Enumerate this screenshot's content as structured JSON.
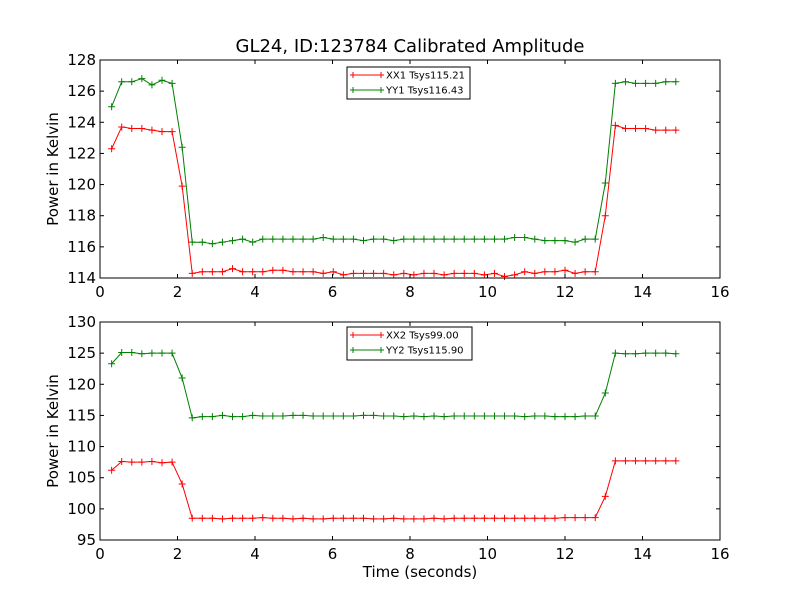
{
  "figure": {
    "title": "GL24, ID:123784 Calibrated Amplitude"
  },
  "chart_data": [
    {
      "type": "line",
      "title": "GL24, ID:123784 Calibrated Amplitude",
      "xlabel": "",
      "ylabel": "Power in Kelvin",
      "xlim": [
        0,
        16
      ],
      "ylim": [
        114,
        128
      ],
      "x_ticks": [
        0,
        2,
        4,
        6,
        8,
        10,
        12,
        14,
        16
      ],
      "y_ticks": [
        114,
        116,
        118,
        120,
        122,
        124,
        126,
        128
      ],
      "grid": false,
      "legend_position": "top-center",
      "x": [
        0.3,
        0.56,
        0.82,
        1.08,
        1.34,
        1.6,
        1.86,
        2.12,
        2.38,
        2.64,
        2.9,
        3.16,
        3.42,
        3.68,
        3.94,
        4.2,
        4.46,
        4.72,
        4.98,
        5.24,
        5.5,
        5.76,
        6.02,
        6.28,
        6.54,
        6.8,
        7.06,
        7.32,
        7.58,
        7.84,
        8.1,
        8.36,
        8.62,
        8.88,
        9.14,
        9.4,
        9.66,
        9.92,
        10.18,
        10.44,
        10.7,
        10.96,
        11.22,
        11.48,
        11.74,
        12.0,
        12.26,
        12.52,
        12.78,
        13.04,
        13.3,
        13.56,
        13.82,
        14.08,
        14.34,
        14.6,
        14.86
      ],
      "series": [
        {
          "name": "XX1 Tsys115.21",
          "color": "#ff0000",
          "values": [
            122.3,
            123.7,
            123.6,
            123.6,
            123.5,
            123.4,
            123.4,
            119.9,
            114.3,
            114.4,
            114.4,
            114.4,
            114.6,
            114.4,
            114.4,
            114.4,
            114.5,
            114.5,
            114.4,
            114.4,
            114.4,
            114.3,
            114.4,
            114.2,
            114.3,
            114.3,
            114.3,
            114.3,
            114.2,
            114.3,
            114.2,
            114.3,
            114.3,
            114.2,
            114.3,
            114.3,
            114.3,
            114.2,
            114.3,
            114.1,
            114.2,
            114.4,
            114.3,
            114.4,
            114.4,
            114.5,
            114.3,
            114.4,
            114.4,
            118.0,
            123.8,
            123.6,
            123.6,
            123.6,
            123.5,
            123.5,
            123.5
          ]
        },
        {
          "name": "YY1 Tsys116.43",
          "color": "#008000",
          "values": [
            125.0,
            126.6,
            126.6,
            126.8,
            126.4,
            126.7,
            126.5,
            122.4,
            116.3,
            116.3,
            116.2,
            116.3,
            116.4,
            116.5,
            116.3,
            116.5,
            116.5,
            116.5,
            116.5,
            116.5,
            116.5,
            116.6,
            116.5,
            116.5,
            116.5,
            116.4,
            116.5,
            116.5,
            116.4,
            116.5,
            116.5,
            116.5,
            116.5,
            116.5,
            116.5,
            116.5,
            116.5,
            116.5,
            116.5,
            116.5,
            116.6,
            116.6,
            116.5,
            116.4,
            116.4,
            116.4,
            116.3,
            116.5,
            116.5,
            120.1,
            126.5,
            126.6,
            126.5,
            126.5,
            126.5,
            126.6,
            126.6
          ]
        }
      ]
    },
    {
      "type": "line",
      "title": "",
      "xlabel": "Time (seconds)",
      "ylabel": "Power in Kelvin",
      "xlim": [
        0,
        16
      ],
      "ylim": [
        95,
        130
      ],
      "x_ticks": [
        0,
        2,
        4,
        6,
        8,
        10,
        12,
        14,
        16
      ],
      "y_ticks": [
        95,
        100,
        105,
        110,
        115,
        120,
        125,
        130
      ],
      "grid": false,
      "legend_position": "top-center",
      "x": [
        0.3,
        0.56,
        0.82,
        1.08,
        1.34,
        1.6,
        1.86,
        2.12,
        2.38,
        2.64,
        2.9,
        3.16,
        3.42,
        3.68,
        3.94,
        4.2,
        4.46,
        4.72,
        4.98,
        5.24,
        5.5,
        5.76,
        6.02,
        6.28,
        6.54,
        6.8,
        7.06,
        7.32,
        7.58,
        7.84,
        8.1,
        8.36,
        8.62,
        8.88,
        9.14,
        9.4,
        9.66,
        9.92,
        10.18,
        10.44,
        10.7,
        10.96,
        11.22,
        11.48,
        11.74,
        12.0,
        12.26,
        12.52,
        12.78,
        13.04,
        13.3,
        13.56,
        13.82,
        14.08,
        14.34,
        14.6,
        14.86
      ],
      "series": [
        {
          "name": "XX2 Tsys99.00",
          "color": "#ff0000",
          "values": [
            106.2,
            107.6,
            107.5,
            107.5,
            107.6,
            107.4,
            107.5,
            104.0,
            98.5,
            98.5,
            98.5,
            98.4,
            98.5,
            98.5,
            98.5,
            98.6,
            98.5,
            98.5,
            98.4,
            98.5,
            98.4,
            98.4,
            98.5,
            98.5,
            98.5,
            98.5,
            98.4,
            98.4,
            98.5,
            98.4,
            98.4,
            98.4,
            98.5,
            98.4,
            98.5,
            98.5,
            98.5,
            98.5,
            98.5,
            98.5,
            98.5,
            98.5,
            98.5,
            98.5,
            98.5,
            98.6,
            98.6,
            98.6,
            98.6,
            102.0,
            107.7,
            107.7,
            107.7,
            107.7,
            107.7,
            107.7,
            107.7
          ]
        },
        {
          "name": "YY2 Tsys115.90",
          "color": "#008000",
          "values": [
            123.3,
            125.1,
            125.1,
            124.9,
            125.0,
            125.0,
            125.0,
            121.0,
            114.6,
            114.8,
            114.8,
            115.0,
            114.8,
            114.8,
            115.0,
            114.9,
            114.9,
            114.9,
            115.0,
            115.0,
            114.9,
            114.9,
            114.9,
            114.9,
            114.9,
            115.0,
            115.0,
            114.9,
            114.9,
            114.8,
            114.9,
            114.8,
            114.9,
            114.8,
            114.9,
            114.9,
            114.9,
            114.9,
            114.9,
            114.9,
            114.9,
            114.8,
            114.9,
            114.9,
            114.8,
            114.8,
            114.8,
            114.9,
            114.9,
            118.6,
            125.0,
            124.9,
            124.9,
            125.0,
            125.0,
            125.0,
            124.9
          ]
        }
      ]
    }
  ]
}
